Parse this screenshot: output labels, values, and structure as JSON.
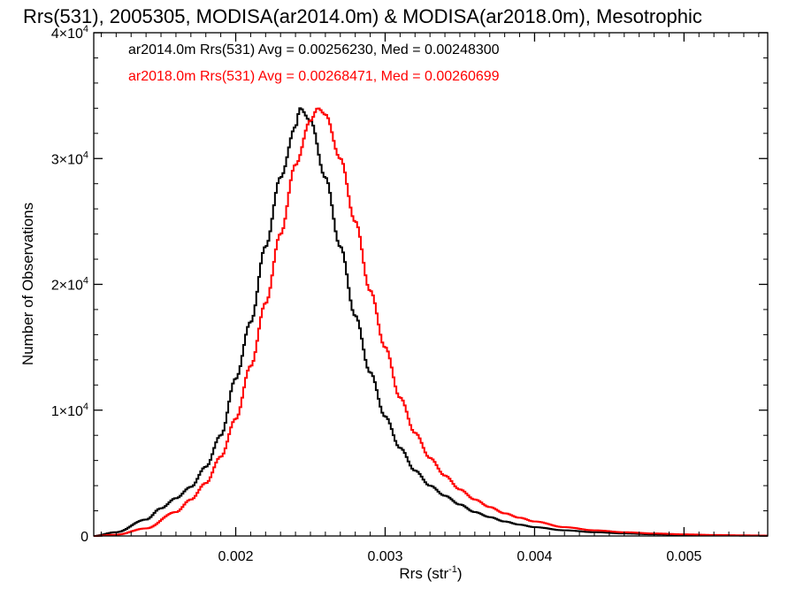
{
  "chart_data": {
    "type": "line",
    "title": "Rrs(531), 2005305, MODISA(ar2014.0m) & MODISA(ar2018.0m), Mesotrophic",
    "xlabel": {
      "base": "Rrs (str",
      "sup": "-1",
      "end": ")"
    },
    "ylabel": "Number of Observations",
    "xlim": [
      0.00105,
      0.00556
    ],
    "ylim": [
      0,
      40000
    ],
    "x_ticks": [
      {
        "value": 0.002,
        "label": "0.002"
      },
      {
        "value": 0.003,
        "label": "0.003"
      },
      {
        "value": 0.004,
        "label": "0.004"
      },
      {
        "value": 0.005,
        "label": "0.005"
      }
    ],
    "y_ticks": [
      {
        "value": 0,
        "mant": "0",
        "exp": ""
      },
      {
        "value": 10000,
        "mant": "1×10",
        "exp": "4"
      },
      {
        "value": 20000,
        "mant": "2×10",
        "exp": "4"
      },
      {
        "value": 30000,
        "mant": "3×10",
        "exp": "4"
      },
      {
        "value": 40000,
        "mant": "4×10",
        "exp": "4"
      }
    ],
    "grid": false,
    "legend_position": "top-left",
    "series": [
      {
        "name": "ar2014.0m",
        "color": "#000000",
        "legend": "ar2014.0m Rrs(531) Avg = 0.00256230, Med = 0.00248300",
        "x": [
          0.00105,
          0.0012,
          0.0014,
          0.0015,
          0.0016,
          0.0017,
          0.0018,
          0.0019,
          0.002,
          0.0021,
          0.0022,
          0.0023,
          0.0024,
          0.00243,
          0.0025,
          0.0026,
          0.0027,
          0.0028,
          0.0029,
          0.003,
          0.0031,
          0.0032,
          0.0033,
          0.0034,
          0.0035,
          0.0036,
          0.0037,
          0.0038,
          0.0039,
          0.004,
          0.0042,
          0.0044,
          0.0046,
          0.0048,
          0.005,
          0.0052,
          0.0054,
          0.00556
        ],
        "y": [
          0,
          300,
          1300,
          2200,
          3000,
          3900,
          5500,
          8000,
          12500,
          17000,
          23000,
          28500,
          32500,
          34000,
          33000,
          28500,
          23000,
          17500,
          13000,
          9500,
          7000,
          5200,
          4000,
          3200,
          2500,
          1900,
          1500,
          1150,
          900,
          700,
          450,
          300,
          200,
          130,
          80,
          50,
          30,
          20
        ]
      },
      {
        "name": "ar2018.0m",
        "color": "#ff0000",
        "legend": "ar2018.0m Rrs(531) Avg = 0.00268471, Med = 0.00260699",
        "x": [
          0.00105,
          0.0012,
          0.0014,
          0.0016,
          0.0017,
          0.0018,
          0.0019,
          0.002,
          0.0021,
          0.0022,
          0.0023,
          0.0024,
          0.0025,
          0.00255,
          0.0026,
          0.0027,
          0.0028,
          0.0029,
          0.003,
          0.0031,
          0.0032,
          0.0033,
          0.0034,
          0.0035,
          0.0036,
          0.0037,
          0.0038,
          0.0039,
          0.004,
          0.0042,
          0.0044,
          0.0046,
          0.0048,
          0.005,
          0.0052,
          0.0054,
          0.00556
        ],
        "y": [
          0,
          100,
          600,
          1900,
          2900,
          4200,
          6300,
          9300,
          13500,
          18500,
          24000,
          29500,
          33000,
          34000,
          33500,
          30000,
          25000,
          19500,
          15000,
          11000,
          8200,
          6200,
          4800,
          3700,
          2900,
          2300,
          1800,
          1450,
          1150,
          700,
          450,
          300,
          200,
          130,
          80,
          50,
          30
        ]
      }
    ]
  }
}
